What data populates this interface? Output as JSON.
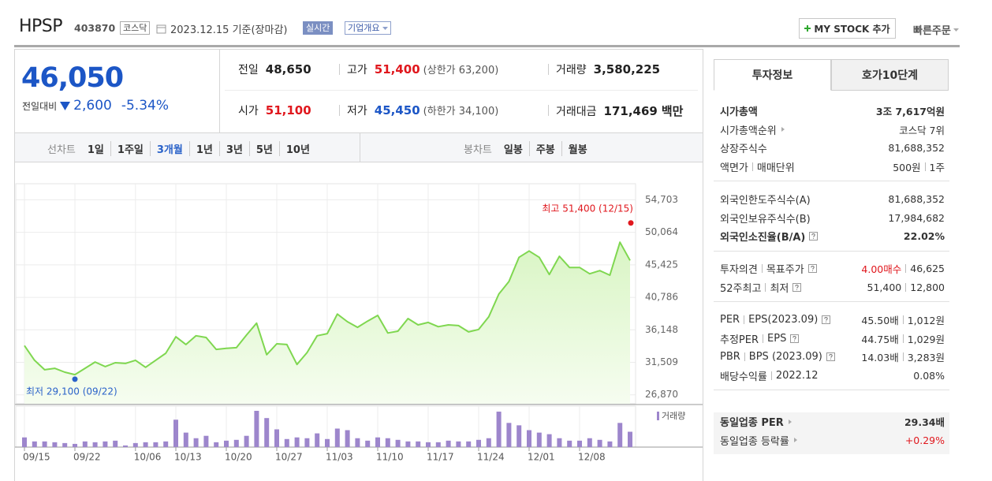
{
  "header": {
    "name": "HPSP",
    "code": "403870",
    "market": "코스닥",
    "date": "2023.12.15 기준(장마감)",
    "realtime": "실시간",
    "overview": "기업개요",
    "mystock": "MY STOCK 추가",
    "quick_order": "빠른주문"
  },
  "price": {
    "current": "46,050",
    "change_label": "전일대비",
    "change": "2,600",
    "change_rate": "-5.34%",
    "color": "#1c56c6"
  },
  "summary": [
    [
      {
        "label": "전일",
        "value": "48,650"
      },
      {
        "label": "고가",
        "value": "51,400",
        "note": "(상한가 63,200)",
        "color": "#e0171d"
      },
      {
        "label": "거래량",
        "value": "3,580,225"
      }
    ],
    [
      {
        "label": "시가",
        "value": "51,100",
        "color": "#e0171d"
      },
      {
        "label": "저가",
        "value": "45,450",
        "note": "(하한가 34,100)",
        "color": "#1c56c6"
      },
      {
        "label": "거래대금",
        "value": "171,469",
        "unit": "백만"
      }
    ]
  ],
  "periods": {
    "line_label": "선차트",
    "line": [
      "1일",
      "1주일",
      "3개월",
      "1년",
      "3년",
      "5년",
      "10년"
    ],
    "active": 2,
    "candle_label": "봉차트",
    "candle": [
      "일봉",
      "주봉",
      "월봉"
    ]
  },
  "chart": {
    "type": "line",
    "color": "#7fd750",
    "categories": [
      "09/15",
      null,
      null,
      null,
      null,
      "09/22",
      null,
      null,
      null,
      null,
      null,
      "10/06",
      null,
      null,
      null,
      "10/13",
      null,
      null,
      null,
      null,
      "10/20",
      null,
      null,
      null,
      null,
      "10/27",
      null,
      null,
      null,
      null,
      "11/03",
      null,
      null,
      null,
      null,
      "11/10",
      null,
      null,
      null,
      null,
      "11/17",
      null,
      null,
      null,
      null,
      "11/24",
      null,
      null,
      null,
      null,
      "12/01",
      null,
      null,
      null,
      null,
      "12/08",
      null,
      null,
      null,
      null,
      null
    ],
    "values": [
      33900,
      31800,
      30450,
      30650,
      30100,
      29750,
      30650,
      31550,
      30900,
      31450,
      31350,
      31800,
      30800,
      31800,
      32800,
      35150,
      34050,
      35300,
      35050,
      33350,
      33500,
      33600,
      35400,
      37100,
      32600,
      34150,
      34050,
      31200,
      32900,
      35300,
      35600,
      38400,
      37300,
      36500,
      37400,
      38200,
      35700,
      35950,
      37750,
      36850,
      37200,
      36600,
      36850,
      36750,
      35850,
      36200,
      38000,
      41250,
      43050,
      46500,
      47400,
      46500,
      44050,
      46650,
      45050,
      45050,
      44150,
      44600,
      43950,
      48650,
      46050
    ],
    "ylim": [
      25600,
      57000
    ],
    "yticks": [
      {
        "value": 54703,
        "label": "54,703"
      },
      {
        "value": 50064,
        "label": "50,064"
      },
      {
        "value": 45425,
        "label": "45,425"
      },
      {
        "value": 40786,
        "label": "40,786"
      },
      {
        "value": 36148,
        "label": "36,148"
      },
      {
        "value": 31509,
        "label": "31,509"
      },
      {
        "value": 26870,
        "label": "26,870"
      }
    ],
    "grid": true,
    "annotations": [
      {
        "text": "최고 51,400 (12/15)",
        "value": 51400,
        "color": "#e0171d"
      },
      {
        "text": "최저 29,100 (09/22)",
        "value": 29100,
        "color": "#2a62c9"
      }
    ],
    "volume": {
      "name": "거래량",
      "color": "#9d86cc",
      "values": [
        2260000,
        1320000,
        1320000,
        1130000,
        940000,
        750000,
        1320000,
        1130000,
        1320000,
        1500000,
        380000,
        940000,
        1130000,
        1130000,
        1320000,
        6390000,
        3380000,
        2070000,
        2630000,
        1130000,
        1500000,
        1690000,
        2630000,
        8460000,
        6770000,
        4140000,
        1880000,
        2260000,
        2070000,
        3200000,
        1880000,
        4320000,
        3950000,
        2070000,
        1500000,
        2260000,
        2070000,
        1690000,
        1320000,
        1320000,
        1130000,
        1130000,
        1500000,
        1320000,
        1320000,
        1690000,
        2070000,
        8270000,
        5640000,
        5080000,
        3950000,
        3380000,
        3010000,
        2070000,
        1500000,
        1500000,
        2070000,
        1690000,
        1320000,
        5640000,
        3580225
      ]
    }
  },
  "side": {
    "tabs": [
      "투자정보",
      "호가10단계"
    ],
    "active_tab": 0,
    "sections": [
      {
        "rows": [
          {
            "label": [
              "시가총액"
            ],
            "value": [
              "3조 7,617억원"
            ],
            "bold": true
          },
          {
            "label": [
              "시가총액순위"
            ],
            "value": [
              "코스닥 7위"
            ],
            "link": true
          },
          {
            "label": [
              "상장주식수"
            ],
            "value": [
              "81,688,352"
            ]
          },
          {
            "label": [
              "액면가",
              "매매단위"
            ],
            "value": [
              "500원",
              "1주"
            ]
          }
        ]
      },
      {
        "rows": [
          {
            "label": [
              "외국인한도주식수(A)"
            ],
            "value": [
              "81,688,352"
            ]
          },
          {
            "label": [
              "외국인보유주식수(B)"
            ],
            "value": [
              "17,984,682"
            ]
          },
          {
            "label": [
              "외국인소진율(B/A)"
            ],
            "value": [
              "22.02%"
            ],
            "help": true,
            "bold": true
          }
        ]
      },
      {
        "rows": [
          {
            "label": [
              "투자의견",
              "목표주가"
            ],
            "value": [
              {
                "text": "4.00매수",
                "color": "#e0171d"
              },
              "46,625"
            ],
            "help": true
          },
          {
            "label": [
              "52주최고",
              "최저"
            ],
            "value": [
              "51,400",
              "12,800"
            ],
            "help": true
          }
        ]
      },
      {
        "rows": [
          {
            "label": [
              "PER",
              "EPS(2023.09)"
            ],
            "value": [
              "45.50배",
              "1,012원"
            ],
            "help": true
          },
          {
            "label": [
              "추정PER",
              "EPS"
            ],
            "value": [
              "44.75배",
              "1,029원"
            ],
            "help": true
          },
          {
            "label": [
              "PBR",
              "BPS (2023.09)"
            ],
            "value": [
              "14.03배",
              "3,283원"
            ],
            "help": true
          },
          {
            "label": [
              "배당수익률",
              "2022.12"
            ],
            "value": [
              "0.08%"
            ]
          }
        ]
      },
      {
        "shaded": true,
        "rows": [
          {
            "label": [
              "동일업종 PER"
            ],
            "value": [
              "29.34배"
            ],
            "link": true,
            "bold": true
          },
          {
            "label": [
              "동일업종 등락률"
            ],
            "value": [
              {
                "text": "+0.29%",
                "color": "#e0171d"
              }
            ],
            "link": true
          }
        ]
      }
    ]
  }
}
